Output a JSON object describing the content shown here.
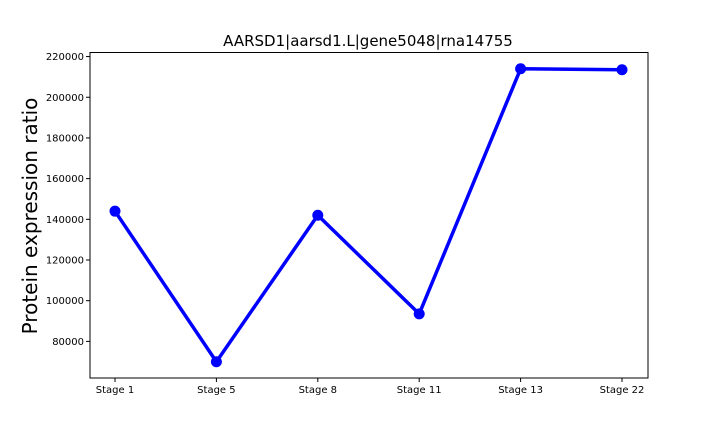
{
  "chart_data": {
    "type": "line",
    "title": "AARSD1|aarsd1.L|gene5048|rna14755",
    "xlabel": "",
    "ylabel": "Protein expression ratio",
    "categories": [
      "Stage 1",
      "Stage 5",
      "Stage 8",
      "Stage 11",
      "Stage 13",
      "Stage 22"
    ],
    "series": [
      {
        "values": [
          144000,
          70000,
          142000,
          93500,
          214000,
          213500
        ],
        "color": "#0000ff"
      }
    ],
    "ylim": [
      62000,
      222000
    ],
    "yticks": [
      80000,
      100000,
      120000,
      140000,
      160000,
      180000,
      200000,
      220000
    ],
    "grid": false
  }
}
